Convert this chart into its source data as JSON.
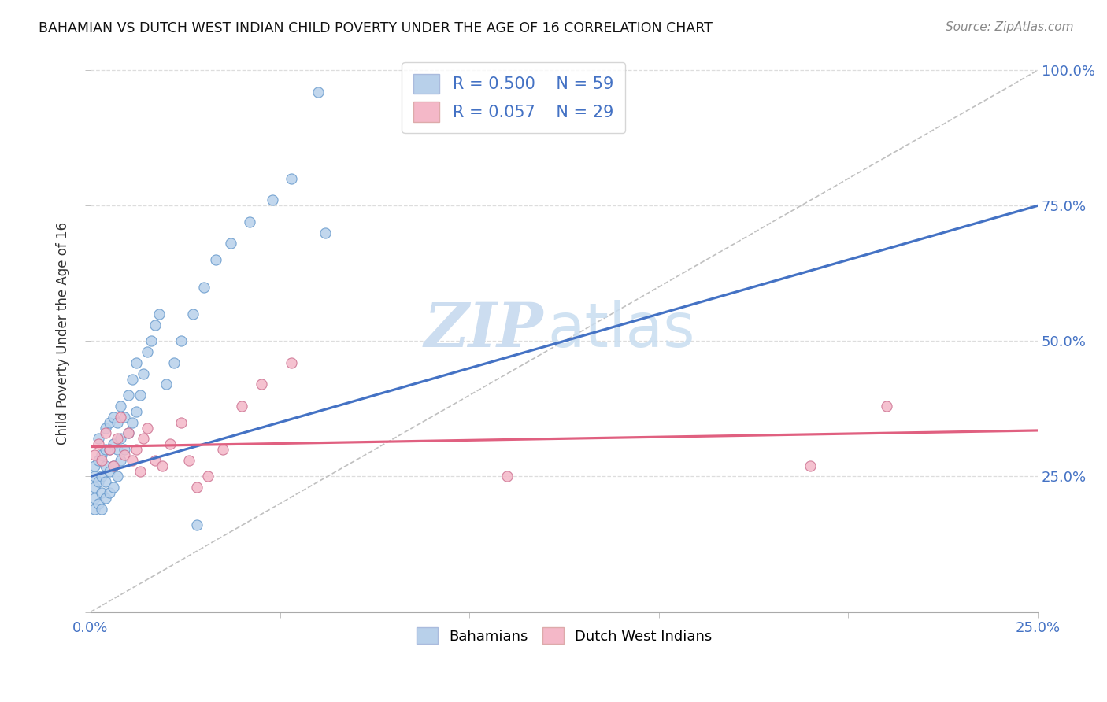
{
  "title": "BAHAMIAN VS DUTCH WEST INDIAN CHILD POVERTY UNDER THE AGE OF 16 CORRELATION CHART",
  "source": "Source: ZipAtlas.com",
  "ylabel": "Child Poverty Under the Age of 16",
  "xlim": [
    0.0,
    0.25
  ],
  "ylim": [
    0.0,
    1.03
  ],
  "blue_fill": "#b8d0ea",
  "blue_edge": "#6699cc",
  "blue_line": "#4472c4",
  "pink_fill": "#f4b8c8",
  "pink_edge": "#cc7090",
  "pink_line": "#e06080",
  "diag_color": "#c0c0c0",
  "grid_color": "#dddddd",
  "axis_color": "#4472c4",
  "blue_line_x0": 0.0,
  "blue_line_y0": 0.25,
  "blue_line_x1": 0.25,
  "blue_line_y1": 0.75,
  "pink_line_x0": 0.0,
  "pink_line_y0": 0.305,
  "pink_line_x1": 0.25,
  "pink_line_y1": 0.335,
  "bahamian_x": [
    0.001,
    0.001,
    0.001,
    0.001,
    0.001,
    0.002,
    0.002,
    0.002,
    0.002,
    0.003,
    0.003,
    0.003,
    0.003,
    0.004,
    0.004,
    0.004,
    0.004,
    0.004,
    0.005,
    0.005,
    0.005,
    0.005,
    0.006,
    0.006,
    0.006,
    0.006,
    0.007,
    0.007,
    0.007,
    0.008,
    0.008,
    0.008,
    0.009,
    0.009,
    0.01,
    0.01,
    0.011,
    0.011,
    0.012,
    0.012,
    0.013,
    0.014,
    0.015,
    0.016,
    0.017,
    0.018,
    0.02,
    0.022,
    0.024,
    0.027,
    0.03,
    0.033,
    0.037,
    0.042,
    0.048,
    0.053,
    0.06,
    0.062,
    0.028
  ],
  "bahamian_y": [
    0.19,
    0.21,
    0.23,
    0.25,
    0.27,
    0.2,
    0.24,
    0.28,
    0.32,
    0.19,
    0.22,
    0.25,
    0.29,
    0.21,
    0.24,
    0.27,
    0.3,
    0.34,
    0.22,
    0.26,
    0.3,
    0.35,
    0.23,
    0.27,
    0.31,
    0.36,
    0.25,
    0.3,
    0.35,
    0.28,
    0.32,
    0.38,
    0.3,
    0.36,
    0.33,
    0.4,
    0.35,
    0.43,
    0.37,
    0.46,
    0.4,
    0.44,
    0.48,
    0.5,
    0.53,
    0.55,
    0.42,
    0.46,
    0.5,
    0.55,
    0.6,
    0.65,
    0.68,
    0.72,
    0.76,
    0.8,
    0.96,
    0.7,
    0.16
  ],
  "dutch_x": [
    0.001,
    0.002,
    0.003,
    0.004,
    0.005,
    0.006,
    0.007,
    0.008,
    0.009,
    0.01,
    0.011,
    0.012,
    0.013,
    0.014,
    0.015,
    0.017,
    0.019,
    0.021,
    0.024,
    0.026,
    0.028,
    0.031,
    0.035,
    0.04,
    0.045,
    0.053,
    0.11,
    0.19,
    0.21
  ],
  "dutch_y": [
    0.29,
    0.31,
    0.28,
    0.33,
    0.3,
    0.27,
    0.32,
    0.36,
    0.29,
    0.33,
    0.28,
    0.3,
    0.26,
    0.32,
    0.34,
    0.28,
    0.27,
    0.31,
    0.35,
    0.28,
    0.23,
    0.25,
    0.3,
    0.38,
    0.42,
    0.46,
    0.25,
    0.27,
    0.38
  ]
}
